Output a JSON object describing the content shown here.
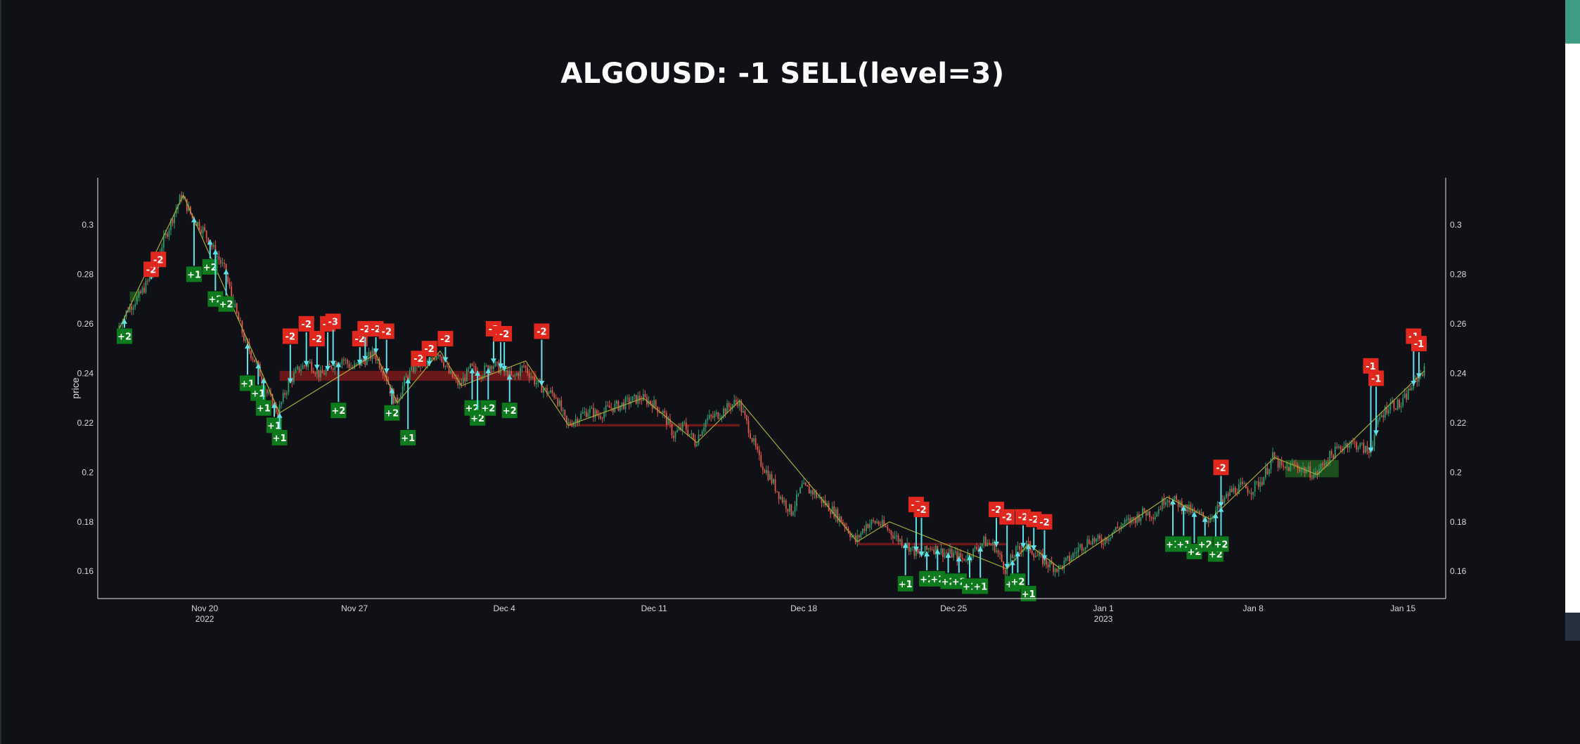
{
  "chart_data": {
    "type": "candlestick",
    "title": "ALGOUSD: -1 SELL(level=3)",
    "ylabel": "price",
    "ylim": [
      0.149,
      0.319
    ],
    "x_range": [
      "2022-11-15",
      "2023-01-17"
    ],
    "y_ticks": [
      "0.16",
      "0.18",
      "0.2",
      "0.22",
      "0.24",
      "0.26",
      "0.28",
      "0.3"
    ],
    "x_ticks": [
      {
        "date": "2022-11-20",
        "label": "Nov 20",
        "sublabel": "2022"
      },
      {
        "date": "2022-11-27",
        "label": "Nov 27",
        "sublabel": ""
      },
      {
        "date": "2022-12-04",
        "label": "Dec 4",
        "sublabel": ""
      },
      {
        "date": "2022-12-11",
        "label": "Dec 11",
        "sublabel": ""
      },
      {
        "date": "2022-12-18",
        "label": "Dec 18",
        "sublabel": ""
      },
      {
        "date": "2022-12-25",
        "label": "Dec 25",
        "sublabel": ""
      },
      {
        "date": "2023-01-01",
        "label": "Jan 1",
        "sublabel": "2023"
      },
      {
        "date": "2023-01-08",
        "label": "Jan 8",
        "sublabel": ""
      },
      {
        "date": "2023-01-15",
        "label": "Jan 15",
        "sublabel": ""
      }
    ],
    "price_path": [
      [
        "2022-11-16 00:00",
        0.258
      ],
      [
        "2022-11-16 12:00",
        0.266
      ],
      [
        "2022-11-17 00:00",
        0.271
      ],
      [
        "2022-11-17 12:00",
        0.278
      ],
      [
        "2022-11-18 00:00",
        0.29
      ],
      [
        "2022-11-18 12:00",
        0.301
      ],
      [
        "2022-11-19 00:00",
        0.312
      ],
      [
        "2022-11-19 12:00",
        0.303
      ],
      [
        "2022-11-20 00:00",
        0.298
      ],
      [
        "2022-11-20 12:00",
        0.29
      ],
      [
        "2022-11-21 00:00",
        0.282
      ],
      [
        "2022-11-21 12:00",
        0.266
      ],
      [
        "2022-11-22 00:00",
        0.252
      ],
      [
        "2022-11-22 12:00",
        0.244
      ],
      [
        "2022-11-23 00:00",
        0.232
      ],
      [
        "2022-11-23 12:00",
        0.224
      ],
      [
        "2022-11-24 00:00",
        0.236
      ],
      [
        "2022-11-24 12:00",
        0.242
      ],
      [
        "2022-11-25 00:00",
        0.244
      ],
      [
        "2022-11-25 12:00",
        0.239
      ],
      [
        "2022-11-26 00:00",
        0.243
      ],
      [
        "2022-11-26 12:00",
        0.246
      ],
      [
        "2022-11-27 00:00",
        0.242
      ],
      [
        "2022-11-27 12:00",
        0.245
      ],
      [
        "2022-11-28 00:00",
        0.248
      ],
      [
        "2022-11-28 12:00",
        0.24
      ],
      [
        "2022-11-29 00:00",
        0.228
      ],
      [
        "2022-11-29 12:00",
        0.238
      ],
      [
        "2022-11-30 00:00",
        0.244
      ],
      [
        "2022-11-30 12:00",
        0.243
      ],
      [
        "2022-12-01 00:00",
        0.249
      ],
      [
        "2022-12-01 12:00",
        0.24
      ],
      [
        "2022-12-02 00:00",
        0.235
      ],
      [
        "2022-12-02 12:00",
        0.242
      ],
      [
        "2022-12-03 00:00",
        0.24
      ],
      [
        "2022-12-03 12:00",
        0.244
      ],
      [
        "2022-12-04 00:00",
        0.241
      ],
      [
        "2022-12-04 12:00",
        0.238
      ],
      [
        "2022-12-05 00:00",
        0.243
      ],
      [
        "2022-12-05 12:00",
        0.237
      ],
      [
        "2022-12-06 00:00",
        0.233
      ],
      [
        "2022-12-06 12:00",
        0.231
      ],
      [
        "2022-12-07 00:00",
        0.219
      ],
      [
        "2022-12-07 12:00",
        0.222
      ],
      [
        "2022-12-08 00:00",
        0.225
      ],
      [
        "2022-12-08 12:00",
        0.223
      ],
      [
        "2022-12-09 00:00",
        0.226
      ],
      [
        "2022-12-09 12:00",
        0.227
      ],
      [
        "2022-12-10 00:00",
        0.229
      ],
      [
        "2022-12-10 12:00",
        0.23
      ],
      [
        "2022-12-11 00:00",
        0.228
      ],
      [
        "2022-12-11 12:00",
        0.224
      ],
      [
        "2022-12-12 00:00",
        0.215
      ],
      [
        "2022-12-12 12:00",
        0.219
      ],
      [
        "2022-12-13 00:00",
        0.212
      ],
      [
        "2022-12-13 12:00",
        0.221
      ],
      [
        "2022-12-14 00:00",
        0.223
      ],
      [
        "2022-12-14 12:00",
        0.226
      ],
      [
        "2022-12-15 00:00",
        0.229
      ],
      [
        "2022-12-15 12:00",
        0.218
      ],
      [
        "2022-12-16 00:00",
        0.205
      ],
      [
        "2022-12-16 12:00",
        0.198
      ],
      [
        "2022-12-17 00:00",
        0.19
      ],
      [
        "2022-12-17 12:00",
        0.184
      ],
      [
        "2022-12-18 00:00",
        0.194
      ],
      [
        "2022-12-18 12:00",
        0.192
      ],
      [
        "2022-12-19 00:00",
        0.188
      ],
      [
        "2022-12-19 12:00",
        0.184
      ],
      [
        "2022-12-20 00:00",
        0.179
      ],
      [
        "2022-12-20 12:00",
        0.172
      ],
      [
        "2022-12-21 00:00",
        0.179
      ],
      [
        "2022-12-21 12:00",
        0.18
      ],
      [
        "2022-12-22 00:00",
        0.177
      ],
      [
        "2022-12-22 12:00",
        0.173
      ],
      [
        "2022-12-23 00:00",
        0.17
      ],
      [
        "2022-12-23 12:00",
        0.166
      ],
      [
        "2022-12-24 00:00",
        0.17
      ],
      [
        "2022-12-24 12:00",
        0.168
      ],
      [
        "2022-12-25 00:00",
        0.167
      ],
      [
        "2022-12-25 12:00",
        0.165
      ],
      [
        "2022-12-26 00:00",
        0.168
      ],
      [
        "2022-12-26 12:00",
        0.172
      ],
      [
        "2022-12-27 00:00",
        0.17
      ],
      [
        "2022-12-27 12:00",
        0.161
      ],
      [
        "2022-12-28 00:00",
        0.168
      ],
      [
        "2022-12-28 12:00",
        0.171
      ],
      [
        "2022-12-29 00:00",
        0.166
      ],
      [
        "2022-12-29 12:00",
        0.163
      ],
      [
        "2022-12-30 00:00",
        0.161
      ],
      [
        "2022-12-30 12:00",
        0.165
      ],
      [
        "2022-12-31 00:00",
        0.17
      ],
      [
        "2022-12-31 12:00",
        0.173
      ],
      [
        "2023-01-01 00:00",
        0.172
      ],
      [
        "2023-01-01 12:00",
        0.176
      ],
      [
        "2023-01-02 00:00",
        0.179
      ],
      [
        "2023-01-02 12:00",
        0.181
      ],
      [
        "2023-01-03 00:00",
        0.184
      ],
      [
        "2023-01-03 12:00",
        0.183
      ],
      [
        "2023-01-04 00:00",
        0.19
      ],
      [
        "2023-01-04 12:00",
        0.188
      ],
      [
        "2023-01-05 00:00",
        0.185
      ],
      [
        "2023-01-05 12:00",
        0.183
      ],
      [
        "2023-01-06 00:00",
        0.181
      ],
      [
        "2023-01-06 12:00",
        0.186
      ],
      [
        "2023-01-07 00:00",
        0.192
      ],
      [
        "2023-01-07 12:00",
        0.194
      ],
      [
        "2023-01-08 00:00",
        0.193
      ],
      [
        "2023-01-08 12:00",
        0.197
      ],
      [
        "2023-01-09 00:00",
        0.206
      ],
      [
        "2023-01-09 12:00",
        0.201
      ],
      [
        "2023-01-10 00:00",
        0.203
      ],
      [
        "2023-01-10 12:00",
        0.201
      ],
      [
        "2023-01-11 00:00",
        0.199
      ],
      [
        "2023-01-11 12:00",
        0.205
      ],
      [
        "2023-01-12 00:00",
        0.209
      ],
      [
        "2023-01-12 12:00",
        0.212
      ],
      [
        "2023-01-13 00:00",
        0.211
      ],
      [
        "2023-01-13 12:00",
        0.208
      ],
      [
        "2023-01-14 00:00",
        0.222
      ],
      [
        "2023-01-14 12:00",
        0.228
      ],
      [
        "2023-01-15 00:00",
        0.227
      ],
      [
        "2023-01-15 12:00",
        0.235
      ],
      [
        "2023-01-16 00:00",
        0.241
      ]
    ],
    "trend_line": [
      [
        "2022-11-16 00:00",
        0.258
      ],
      [
        "2022-11-19 00:00",
        0.312
      ],
      [
        "2022-11-23 12:00",
        0.224
      ],
      [
        "2022-11-28 00:00",
        0.248
      ],
      [
        "2022-11-29 00:00",
        0.228
      ],
      [
        "2022-12-01 00:00",
        0.249
      ],
      [
        "2022-12-02 00:00",
        0.235
      ],
      [
        "2022-12-05 00:00",
        0.245
      ],
      [
        "2022-12-07 00:00",
        0.219
      ],
      [
        "2022-12-10 12:00",
        0.23
      ],
      [
        "2022-12-13 00:00",
        0.212
      ],
      [
        "2022-12-15 00:00",
        0.229
      ],
      [
        "2022-12-20 12:00",
        0.172
      ],
      [
        "2022-12-22 00:00",
        0.18
      ],
      [
        "2022-12-27 12:00",
        0.161
      ],
      [
        "2022-12-28 12:00",
        0.171
      ],
      [
        "2022-12-30 00:00",
        0.161
      ],
      [
        "2023-01-04 00:00",
        0.19
      ],
      [
        "2023-01-06 00:00",
        0.181
      ],
      [
        "2023-01-09 00:00",
        0.206
      ],
      [
        "2023-01-11 00:00",
        0.199
      ],
      [
        "2023-01-16 00:00",
        0.241
      ]
    ],
    "zones": [
      {
        "type": "resistance",
        "start": "2022-11-23 12:00",
        "end": "2022-12-05 12:00",
        "low": 0.237,
        "high": 0.241
      },
      {
        "type": "resistance",
        "start": "2022-12-07 00:00",
        "end": "2022-12-15 00:00",
        "low": 0.2185,
        "high": 0.2195
      },
      {
        "type": "resistance",
        "start": "2022-12-20 12:00",
        "end": "2022-12-27 12:00",
        "low": 0.1705,
        "high": 0.1715
      },
      {
        "type": "support",
        "start": "2022-11-16 12:00",
        "end": "2022-11-17 00:00",
        "low": 0.269,
        "high": 0.273
      },
      {
        "type": "support",
        "start": "2023-01-09 12:00",
        "end": "2023-01-12 00:00",
        "low": 0.198,
        "high": 0.205
      }
    ],
    "signals": [
      {
        "t": "2022-11-16 06:00",
        "label": "+2",
        "side": "buy",
        "y": 0.255
      },
      {
        "t": "2022-11-17 12:00",
        "label": "-2",
        "side": "sell",
        "y": 0.282
      },
      {
        "t": "2022-11-17 20:00",
        "label": "-2",
        "side": "sell",
        "y": 0.286
      },
      {
        "t": "2022-11-19 12:00",
        "label": "+1",
        "side": "buy",
        "y": 0.28
      },
      {
        "t": "2022-11-20 06:00",
        "label": "+2",
        "side": "buy",
        "y": 0.283
      },
      {
        "t": "2022-11-20 12:00",
        "label": "+2",
        "side": "buy",
        "y": 0.27
      },
      {
        "t": "2022-11-21 00:00",
        "label": "+2",
        "side": "buy",
        "y": 0.268
      },
      {
        "t": "2022-11-22 00:00",
        "label": "+1",
        "side": "buy",
        "y": 0.236
      },
      {
        "t": "2022-11-22 12:00",
        "label": "+1",
        "side": "buy",
        "y": 0.232
      },
      {
        "t": "2022-11-22 18:00",
        "label": "+1",
        "side": "buy",
        "y": 0.226
      },
      {
        "t": "2022-11-23 06:00",
        "label": "+1",
        "side": "buy",
        "y": 0.219
      },
      {
        "t": "2022-11-23 12:00",
        "label": "+1",
        "side": "buy",
        "y": 0.214
      },
      {
        "t": "2022-11-24 00:00",
        "label": "-2",
        "side": "sell",
        "y": 0.255
      },
      {
        "t": "2022-11-24 18:00",
        "label": "-2",
        "side": "sell",
        "y": 0.26
      },
      {
        "t": "2022-11-25 06:00",
        "label": "-2",
        "side": "sell",
        "y": 0.254
      },
      {
        "t": "2022-11-25 18:00",
        "label": "-2",
        "side": "sell",
        "y": 0.26
      },
      {
        "t": "2022-11-26 00:00",
        "label": "-3",
        "side": "sell",
        "y": 0.261
      },
      {
        "t": "2022-11-26 06:00",
        "label": "+2",
        "side": "buy",
        "y": 0.225
      },
      {
        "t": "2022-11-27 06:00",
        "label": "-2",
        "side": "sell",
        "y": 0.254
      },
      {
        "t": "2022-11-27 12:00",
        "label": "-2",
        "side": "sell",
        "y": 0.258
      },
      {
        "t": "2022-11-28 00:00",
        "label": "-2",
        "side": "sell",
        "y": 0.258
      },
      {
        "t": "2022-11-28 12:00",
        "label": "-2",
        "side": "sell",
        "y": 0.257
      },
      {
        "t": "2022-11-28 18:00",
        "label": "+2",
        "side": "buy",
        "y": 0.224
      },
      {
        "t": "2022-11-29 12:00",
        "label": "+1",
        "side": "buy",
        "y": 0.214
      },
      {
        "t": "2022-11-30 00:00",
        "label": "-2",
        "side": "sell",
        "y": 0.246
      },
      {
        "t": "2022-11-30 12:00",
        "label": "-2",
        "side": "sell",
        "y": 0.25
      },
      {
        "t": "2022-12-01 06:00",
        "label": "-2",
        "side": "sell",
        "y": 0.254
      },
      {
        "t": "2022-12-02 12:00",
        "label": "+2",
        "side": "buy",
        "y": 0.226
      },
      {
        "t": "2022-12-02 18:00",
        "label": "+2",
        "side": "buy",
        "y": 0.222
      },
      {
        "t": "2022-12-03 06:00",
        "label": "+2",
        "side": "buy",
        "y": 0.226
      },
      {
        "t": "2022-12-03 12:00",
        "label": "-2",
        "side": "sell",
        "y": 0.258
      },
      {
        "t": "2022-12-03 20:00",
        "label": "-2",
        "side": "sell",
        "y": 0.256
      },
      {
        "t": "2022-12-04 00:00",
        "label": "-2",
        "side": "sell",
        "y": 0.256
      },
      {
        "t": "2022-12-04 06:00",
        "label": "+2",
        "side": "buy",
        "y": 0.225
      },
      {
        "t": "2022-12-05 18:00",
        "label": "-2",
        "side": "sell",
        "y": 0.257
      },
      {
        "t": "2022-12-23 06:00",
        "label": "-2",
        "side": "sell",
        "y": 0.187
      },
      {
        "t": "2022-12-23 12:00",
        "label": "-2",
        "side": "sell",
        "y": 0.185
      },
      {
        "t": "2022-12-22 18:00",
        "label": "+1",
        "side": "buy",
        "y": 0.155
      },
      {
        "t": "2022-12-23 18:00",
        "label": "+2",
        "side": "buy",
        "y": 0.157
      },
      {
        "t": "2022-12-24 06:00",
        "label": "+2",
        "side": "buy",
        "y": 0.157
      },
      {
        "t": "2022-12-24 18:00",
        "label": "+2",
        "side": "buy",
        "y": 0.156
      },
      {
        "t": "2022-12-25 06:00",
        "label": "+2",
        "side": "buy",
        "y": 0.156
      },
      {
        "t": "2022-12-25 18:00",
        "label": "+1",
        "side": "buy",
        "y": 0.154
      },
      {
        "t": "2022-12-26 06:00",
        "label": "+1",
        "side": "buy",
        "y": 0.154
      },
      {
        "t": "2022-12-27 00:00",
        "label": "-2",
        "side": "sell",
        "y": 0.185
      },
      {
        "t": "2022-12-27 12:00",
        "label": "-2",
        "side": "sell",
        "y": 0.182
      },
      {
        "t": "2022-12-27 18:00",
        "label": "+1",
        "side": "buy",
        "y": 0.155
      },
      {
        "t": "2022-12-28 00:00",
        "label": "+2",
        "side": "buy",
        "y": 0.156
      },
      {
        "t": "2022-12-28 06:00",
        "label": "-2",
        "side": "sell",
        "y": 0.182
      },
      {
        "t": "2022-12-28 12:00",
        "label": "+1",
        "side": "buy",
        "y": 0.151
      },
      {
        "t": "2022-12-28 18:00",
        "label": "-2",
        "side": "sell",
        "y": 0.181
      },
      {
        "t": "2022-12-29 06:00",
        "label": "-2",
        "side": "sell",
        "y": 0.18
      },
      {
        "t": "2023-01-04 06:00",
        "label": "+1",
        "side": "buy",
        "y": 0.171
      },
      {
        "t": "2023-01-04 18:00",
        "label": "+1",
        "side": "buy",
        "y": 0.171
      },
      {
        "t": "2023-01-05 06:00",
        "label": "+2",
        "side": "buy",
        "y": 0.168
      },
      {
        "t": "2023-01-05 18:00",
        "label": "+2",
        "side": "buy",
        "y": 0.171
      },
      {
        "t": "2023-01-06 06:00",
        "label": "+2",
        "side": "buy",
        "y": 0.167
      },
      {
        "t": "2023-01-06 12:00",
        "label": "+2",
        "side": "buy",
        "y": 0.171
      },
      {
        "t": "2023-01-06 12:00",
        "label": "-2",
        "side": "sell",
        "y": 0.202
      },
      {
        "t": "2023-01-13 12:00",
        "label": "-1",
        "side": "sell",
        "y": 0.243
      },
      {
        "t": "2023-01-13 18:00",
        "label": "-1",
        "side": "sell",
        "y": 0.238
      },
      {
        "t": "2023-01-15 12:00",
        "label": "-1",
        "side": "sell",
        "y": 0.255
      },
      {
        "t": "2023-01-15 18:00",
        "label": "-1",
        "side": "sell",
        "y": 0.252
      }
    ],
    "colors": {
      "background": "#101116",
      "increasing": "#2e9c6e",
      "decreasing": "#e2574c",
      "buy_label": "#0e7a1e",
      "sell_label": "#e0281f",
      "signal_arrow": "#5ee0e8",
      "trend_line": "#a8a832",
      "resistance_zone": "#7a1a1a",
      "support_zone": "#1f5a1f"
    },
    "grid": false,
    "legend": "none"
  }
}
